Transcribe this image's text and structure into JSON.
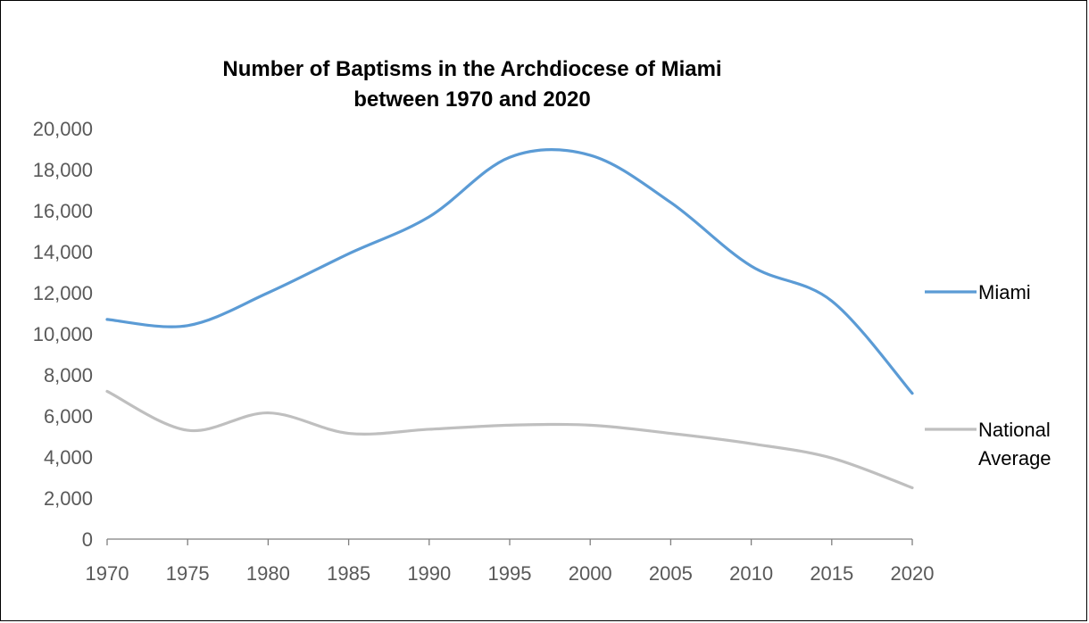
{
  "chart_data": {
    "type": "line",
    "title": [
      "Number of Baptisms in the Archdiocese of Miami",
      "between 1970 and 2020"
    ],
    "xlabel": "",
    "ylabel": "",
    "x": [
      1970,
      1975,
      1980,
      1985,
      1990,
      1995,
      2000,
      2005,
      2010,
      2015,
      2020
    ],
    "x_tick_labels": [
      "1970",
      "1975",
      "1980",
      "1985",
      "1990",
      "1995",
      "2000",
      "2005",
      "2010",
      "2015",
      "2020"
    ],
    "ylim": [
      0,
      20000
    ],
    "y_ticks": [
      0,
      2000,
      4000,
      6000,
      8000,
      10000,
      12000,
      14000,
      16000,
      18000,
      20000
    ],
    "y_tick_labels": [
      "0",
      "2,000",
      "4,000",
      "6,000",
      "8,000",
      "10,000",
      "12,000",
      "14,000",
      "16,000",
      "18,000",
      "20,000"
    ],
    "grid": false,
    "smooth": true,
    "legend_position": "right",
    "series": [
      {
        "name": "Miami",
        "legend_lines": [
          "Miami"
        ],
        "color": "#5b9bd5",
        "values": [
          10700,
          10400,
          12000,
          13900,
          15700,
          18600,
          18700,
          16400,
          13300,
          11600,
          7100
        ]
      },
      {
        "name": "National Average",
        "legend_lines": [
          "National",
          "Average"
        ],
        "color": "#bfbfbf",
        "values": [
          7200,
          5300,
          6150,
          5150,
          5350,
          5550,
          5550,
          5150,
          4650,
          3950,
          2500
        ]
      }
    ]
  }
}
